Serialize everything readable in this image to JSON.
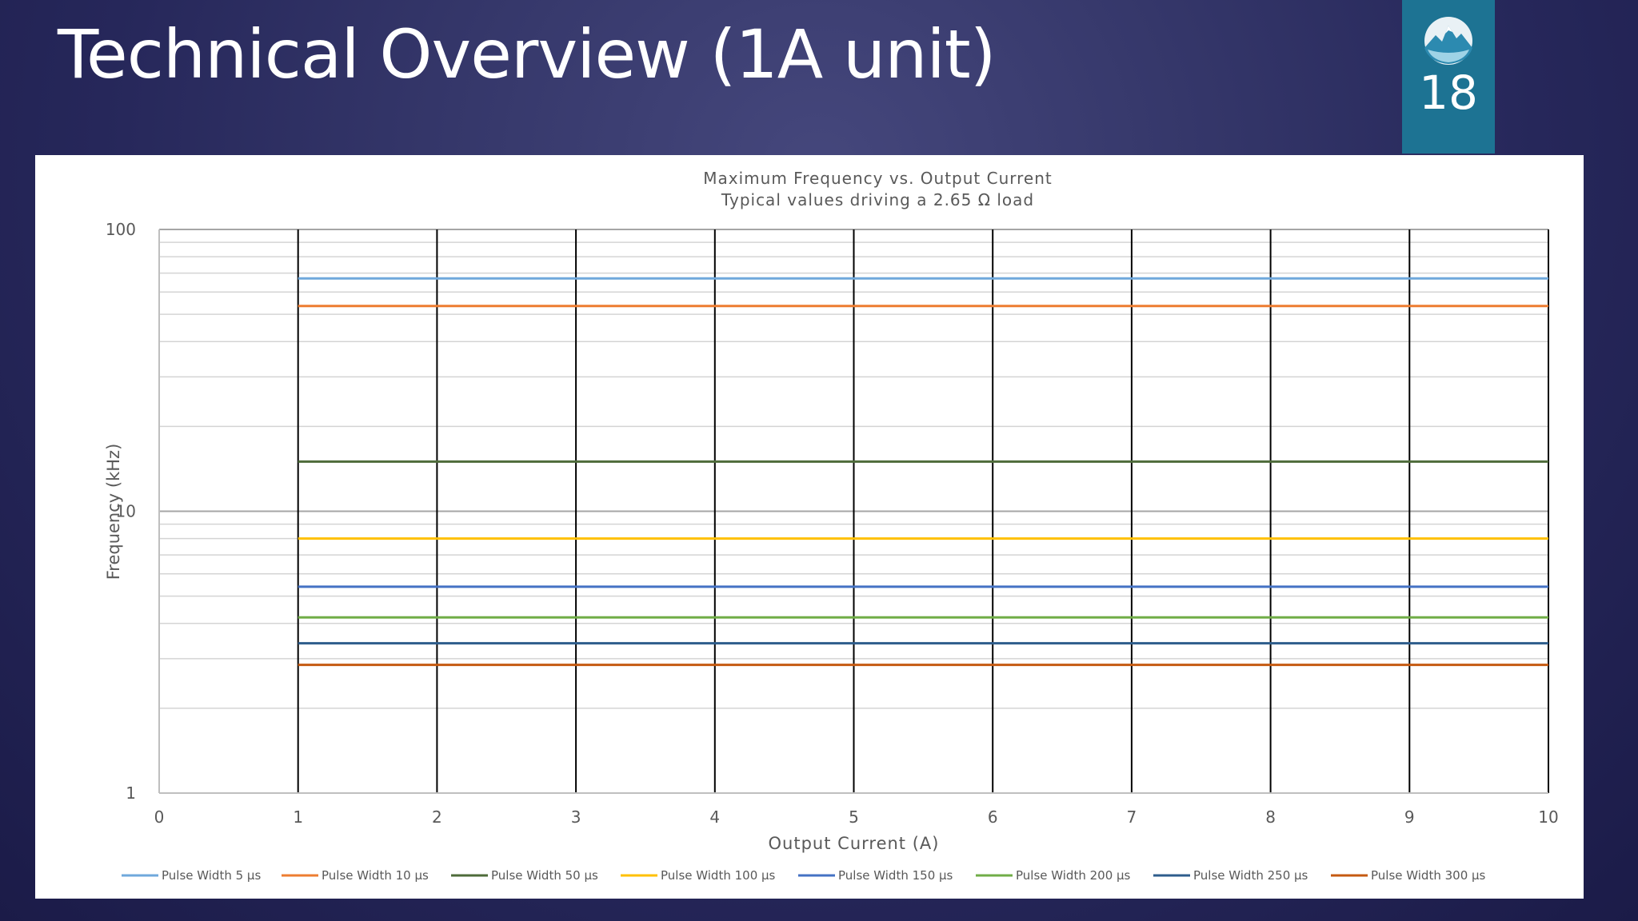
{
  "slide": {
    "title": "Technical Overview (1A unit)",
    "page_number": "18",
    "background_color": "#2f3066",
    "badge_color": "#1d7393",
    "logo_icon": "mountain-globe-logo"
  },
  "chart_data": {
    "type": "line",
    "title": "Maximum Frequency vs. Output Current",
    "subtitle": "Typical values driving a 2.65 Ω load",
    "xlabel": "Output Current (A)",
    "ylabel": "Frequency (kHz)",
    "x_ticks": [
      "0",
      "1",
      "2",
      "3",
      "4",
      "5",
      "6",
      "7",
      "8",
      "9",
      "10"
    ],
    "y_ticks": [
      "1",
      "10",
      "100"
    ],
    "xlim": [
      0,
      10
    ],
    "ylim": [
      1,
      100
    ],
    "y_scale": "log",
    "grid": true,
    "legend_position": "bottom",
    "x": [
      1,
      2,
      3,
      4,
      5,
      6,
      7,
      8,
      9,
      10
    ],
    "series": [
      {
        "name": "Pulse Width 5 µs",
        "color": "#6fa8dc",
        "values": [
          67,
          67,
          67,
          67,
          67,
          67,
          67,
          67,
          67,
          67
        ]
      },
      {
        "name": "Pulse Width 10 µs",
        "color": "#ed7d31",
        "values": [
          53.5,
          53.5,
          53.5,
          53.5,
          53.5,
          53.5,
          53.5,
          53.5,
          53.5,
          53.5
        ]
      },
      {
        "name": "Pulse Width 50 µs",
        "color": "#4e6b3a",
        "values": [
          15,
          15,
          15,
          15,
          15,
          15,
          15,
          15,
          15,
          15
        ]
      },
      {
        "name": "Pulse Width 100 µs",
        "color": "#ffc000",
        "values": [
          8,
          8,
          8,
          8,
          8,
          8,
          8,
          8,
          8,
          8
        ]
      },
      {
        "name": "Pulse Width 150 µs",
        "color": "#4472c4",
        "values": [
          5.4,
          5.4,
          5.4,
          5.4,
          5.4,
          5.4,
          5.4,
          5.4,
          5.4,
          5.4
        ]
      },
      {
        "name": "Pulse Width 200 µs",
        "color": "#70ad47",
        "values": [
          4.2,
          4.2,
          4.2,
          4.2,
          4.2,
          4.2,
          4.2,
          4.2,
          4.2,
          4.2
        ]
      },
      {
        "name": "Pulse Width 250 µs",
        "color": "#2e5d8c",
        "values": [
          3.4,
          3.4,
          3.4,
          3.4,
          3.4,
          3.4,
          3.4,
          3.4,
          3.4,
          3.4
        ]
      },
      {
        "name": "Pulse Width 300 µs",
        "color": "#c55a11",
        "values": [
          2.85,
          2.85,
          2.85,
          2.85,
          2.85,
          2.85,
          2.85,
          2.85,
          2.85,
          2.85
        ]
      }
    ]
  }
}
